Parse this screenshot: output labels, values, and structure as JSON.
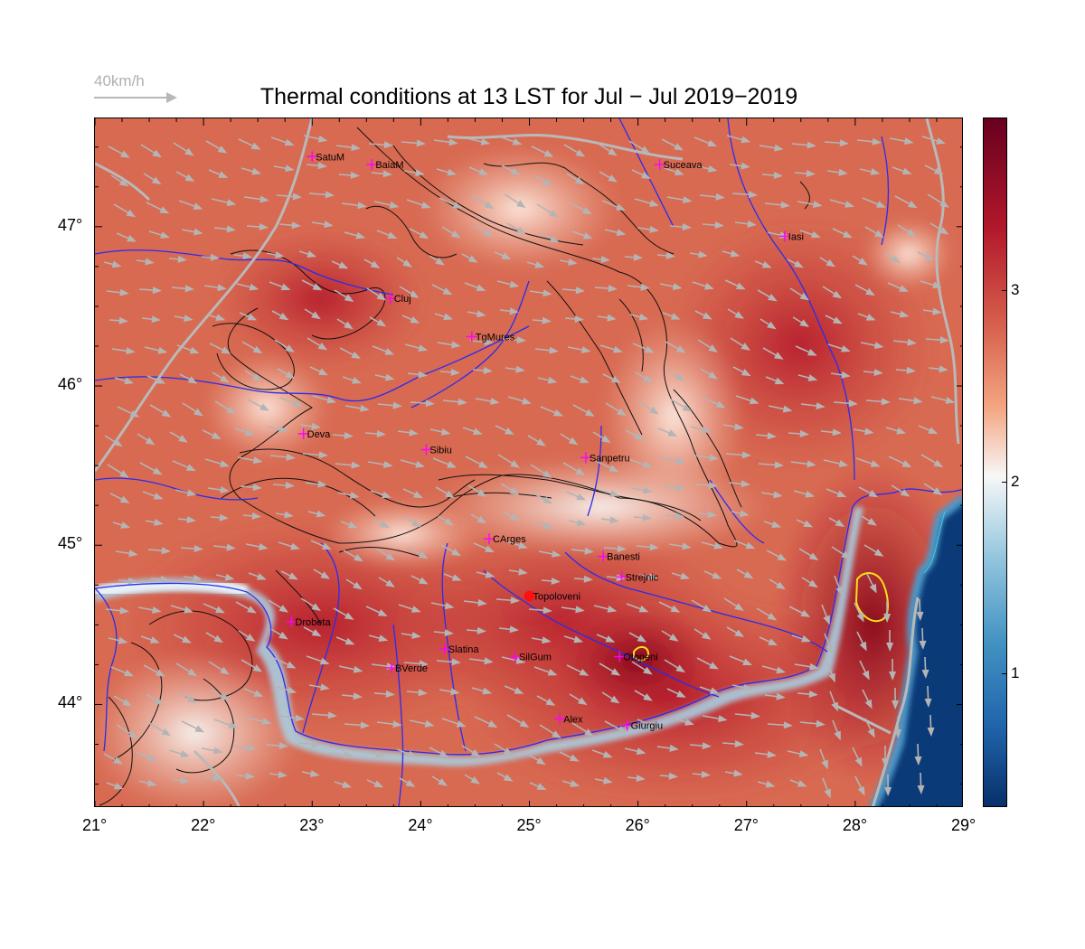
{
  "title": "Thermal conditions at 13 LST for Jul − Jul  2019−2019",
  "wind_scale_label": "40km/h",
  "axes": {
    "x_ticks": [
      "21°",
      "22°",
      "23°",
      "24°",
      "25°",
      "26°",
      "27°",
      "28°",
      "29°"
    ],
    "y_ticks": [
      "47°",
      "46°",
      "45°",
      "44°"
    ],
    "lon_range": [
      21,
      29
    ],
    "lat_range": [
      43.35,
      47.68
    ]
  },
  "colorbar": {
    "ticks": [
      "3",
      "2",
      "1"
    ],
    "range": [
      0.3,
      3.9
    ],
    "colors": [
      "#08306b",
      "#2166ac",
      "#92c5de",
      "#f7f7f7",
      "#f4a582",
      "#d6604d",
      "#b2182b",
      "#67001f"
    ]
  },
  "cities": [
    {
      "name": "SatuM",
      "lon": 23.0,
      "lat": 47.44
    },
    {
      "name": "BaiaM",
      "lon": 23.55,
      "lat": 47.39
    },
    {
      "name": "Suceava",
      "lon": 26.2,
      "lat": 47.39
    },
    {
      "name": "Iasi",
      "lon": 27.35,
      "lat": 46.94
    },
    {
      "name": "Cluj",
      "lon": 23.72,
      "lat": 46.55
    },
    {
      "name": "TgMures",
      "lon": 24.47,
      "lat": 46.31
    },
    {
      "name": "Deva",
      "lon": 22.92,
      "lat": 45.7
    },
    {
      "name": "Sibiu",
      "lon": 24.05,
      "lat": 45.6
    },
    {
      "name": "Sanpetru",
      "lon": 25.52,
      "lat": 45.55
    },
    {
      "name": "CArges",
      "lon": 24.63,
      "lat": 45.04
    },
    {
      "name": "Banesti",
      "lon": 25.68,
      "lat": 44.93
    },
    {
      "name": "Strejnic",
      "lon": 25.85,
      "lat": 44.8
    },
    {
      "name": "Topoloveni",
      "lon": 25.0,
      "lat": 44.68,
      "highlight": true
    },
    {
      "name": "Drobeta",
      "lon": 22.81,
      "lat": 44.52
    },
    {
      "name": "Slatina",
      "lon": 24.22,
      "lat": 44.35
    },
    {
      "name": "SilGum",
      "lon": 24.87,
      "lat": 44.3
    },
    {
      "name": "Otopeni",
      "lon": 25.83,
      "lat": 44.3
    },
    {
      "name": "BVerde",
      "lon": 23.73,
      "lat": 44.23
    },
    {
      "name": "Alex",
      "lon": 25.28,
      "lat": 43.91
    },
    {
      "name": "Giurgiu",
      "lon": 25.9,
      "lat": 43.87
    }
  ]
}
